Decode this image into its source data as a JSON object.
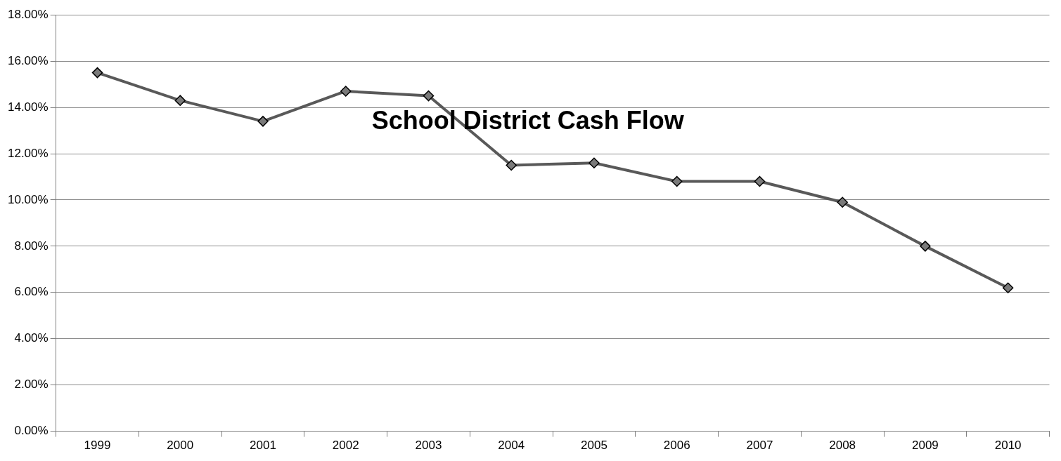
{
  "chart_data": {
    "type": "line",
    "title": "School District Cash Flow",
    "categories": [
      "1999",
      "2000",
      "2001",
      "2002",
      "2003",
      "2004",
      "2005",
      "2006",
      "2007",
      "2008",
      "2009",
      "2010"
    ],
    "series": [
      {
        "color": "#595959",
        "values": [
          15.5,
          14.3,
          13.4,
          14.7,
          14.5,
          11.5,
          11.6,
          10.8,
          10.8,
          9.9,
          8.0,
          6.2
        ]
      }
    ],
    "ylim": [
      0,
      18
    ],
    "yticks": [
      {
        "value": 0,
        "label": "0.00%"
      },
      {
        "value": 2,
        "label": "2.00%"
      },
      {
        "value": 4,
        "label": "4.00%"
      },
      {
        "value": 6,
        "label": "6.00%"
      },
      {
        "value": 8,
        "label": "8.00%"
      },
      {
        "value": 10,
        "label": "10.00%"
      },
      {
        "value": 12,
        "label": "12.00%"
      },
      {
        "value": 14,
        "label": "14.00%"
      },
      {
        "value": 16,
        "label": "16.00%"
      },
      {
        "value": 18,
        "label": "18.00%"
      }
    ],
    "grid": "y",
    "legend": false,
    "marker": "diamond",
    "line_style": "solid"
  }
}
